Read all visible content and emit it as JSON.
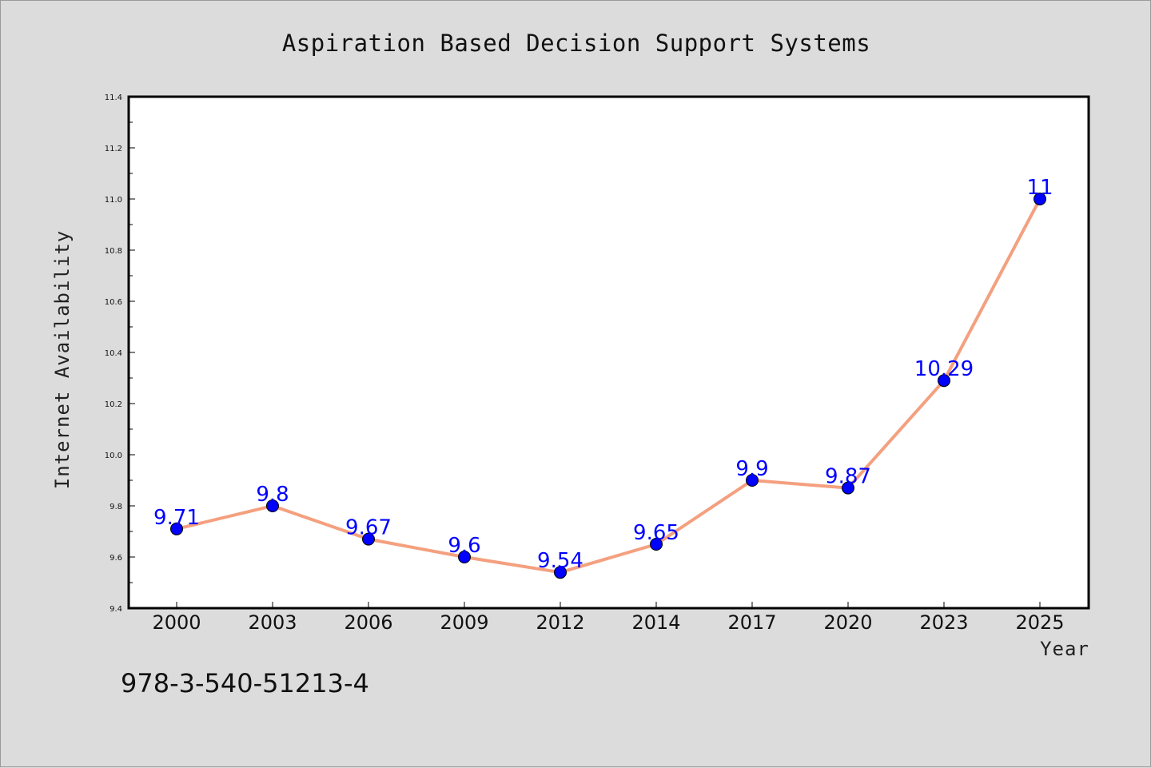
{
  "chart_data": {
    "type": "line",
    "title": "Aspiration Based Decision Support Systems",
    "xlabel": "Year",
    "ylabel": "Internet Availability",
    "categories": [
      "2000",
      "2003",
      "2006",
      "2009",
      "2012",
      "2014",
      "2017",
      "2020",
      "2023",
      "2025"
    ],
    "series": [
      {
        "values": [
          9.71,
          9.8,
          9.67,
          9.6,
          9.54,
          9.65,
          9.9,
          9.87,
          10.29,
          11
        ],
        "data_labels": [
          "9.71",
          "9.8",
          "9.67",
          "9.6",
          "9.54",
          "9.65",
          "9.9",
          "9.87",
          "10.29",
          "11"
        ],
        "line_color": "#f4a07f",
        "marker_color": "#0000ff"
      }
    ],
    "ylim": [
      9.4,
      11.4
    ],
    "yticks": [
      "9.4",
      "9.6",
      "9.8",
      "10.0",
      "10.2",
      "10.4",
      "10.6",
      "10.8",
      "11.0",
      "11.2",
      "11.4"
    ],
    "grid": false,
    "legend": "none",
    "background_color": "#dcdcdc",
    "plot_background_color": "#ffffff"
  },
  "footnote": "978-3-540-51213-4"
}
